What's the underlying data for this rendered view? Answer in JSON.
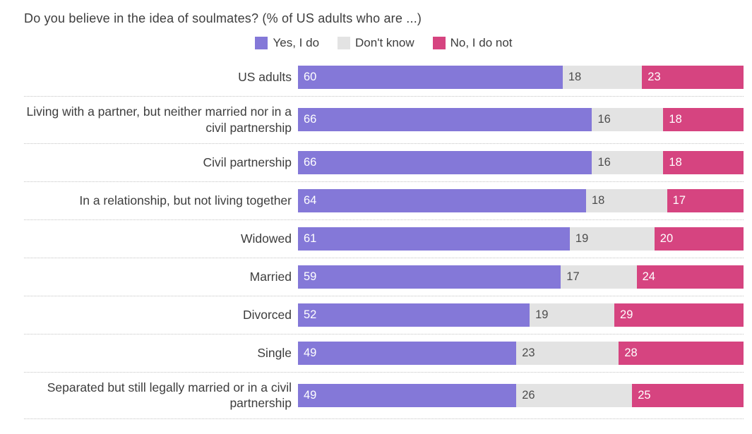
{
  "chart_data": {
    "type": "bar",
    "orientation": "horizontal",
    "stacked": true,
    "title": "Do you believe in the idea of soulmates? (% of US adults who are ...)",
    "legend_position": "top-center",
    "value_labels": "inside-start",
    "xlim": [
      0,
      100
    ],
    "grid": false,
    "categories": [
      "US adults",
      "Living with a partner, but neither married nor in a civil partnership",
      "Civil partnership",
      "In a relationship, but not living together",
      "Widowed",
      "Married",
      "Divorced",
      "Single",
      "Separated but still legally married or in a civil partnership"
    ],
    "series": [
      {
        "name": "Yes, I do",
        "color": "#8478d8",
        "value_text_color": "#ffffff",
        "values": [
          60,
          66,
          66,
          64,
          61,
          59,
          52,
          49,
          49
        ]
      },
      {
        "name": "Don't know",
        "color": "#e3e3e3",
        "value_text_color": "#4d4d4d",
        "values": [
          18,
          16,
          16,
          18,
          19,
          17,
          19,
          23,
          26
        ]
      },
      {
        "name": "No, I do not",
        "color": "#d64480",
        "value_text_color": "#ffffff",
        "values": [
          23,
          18,
          18,
          17,
          20,
          24,
          29,
          28,
          25
        ]
      }
    ]
  },
  "colors": {
    "background": "#ffffff",
    "title_text": "#3d3d3d",
    "category_text": "#3d3d3d",
    "separator": "#c3c3c3"
  }
}
